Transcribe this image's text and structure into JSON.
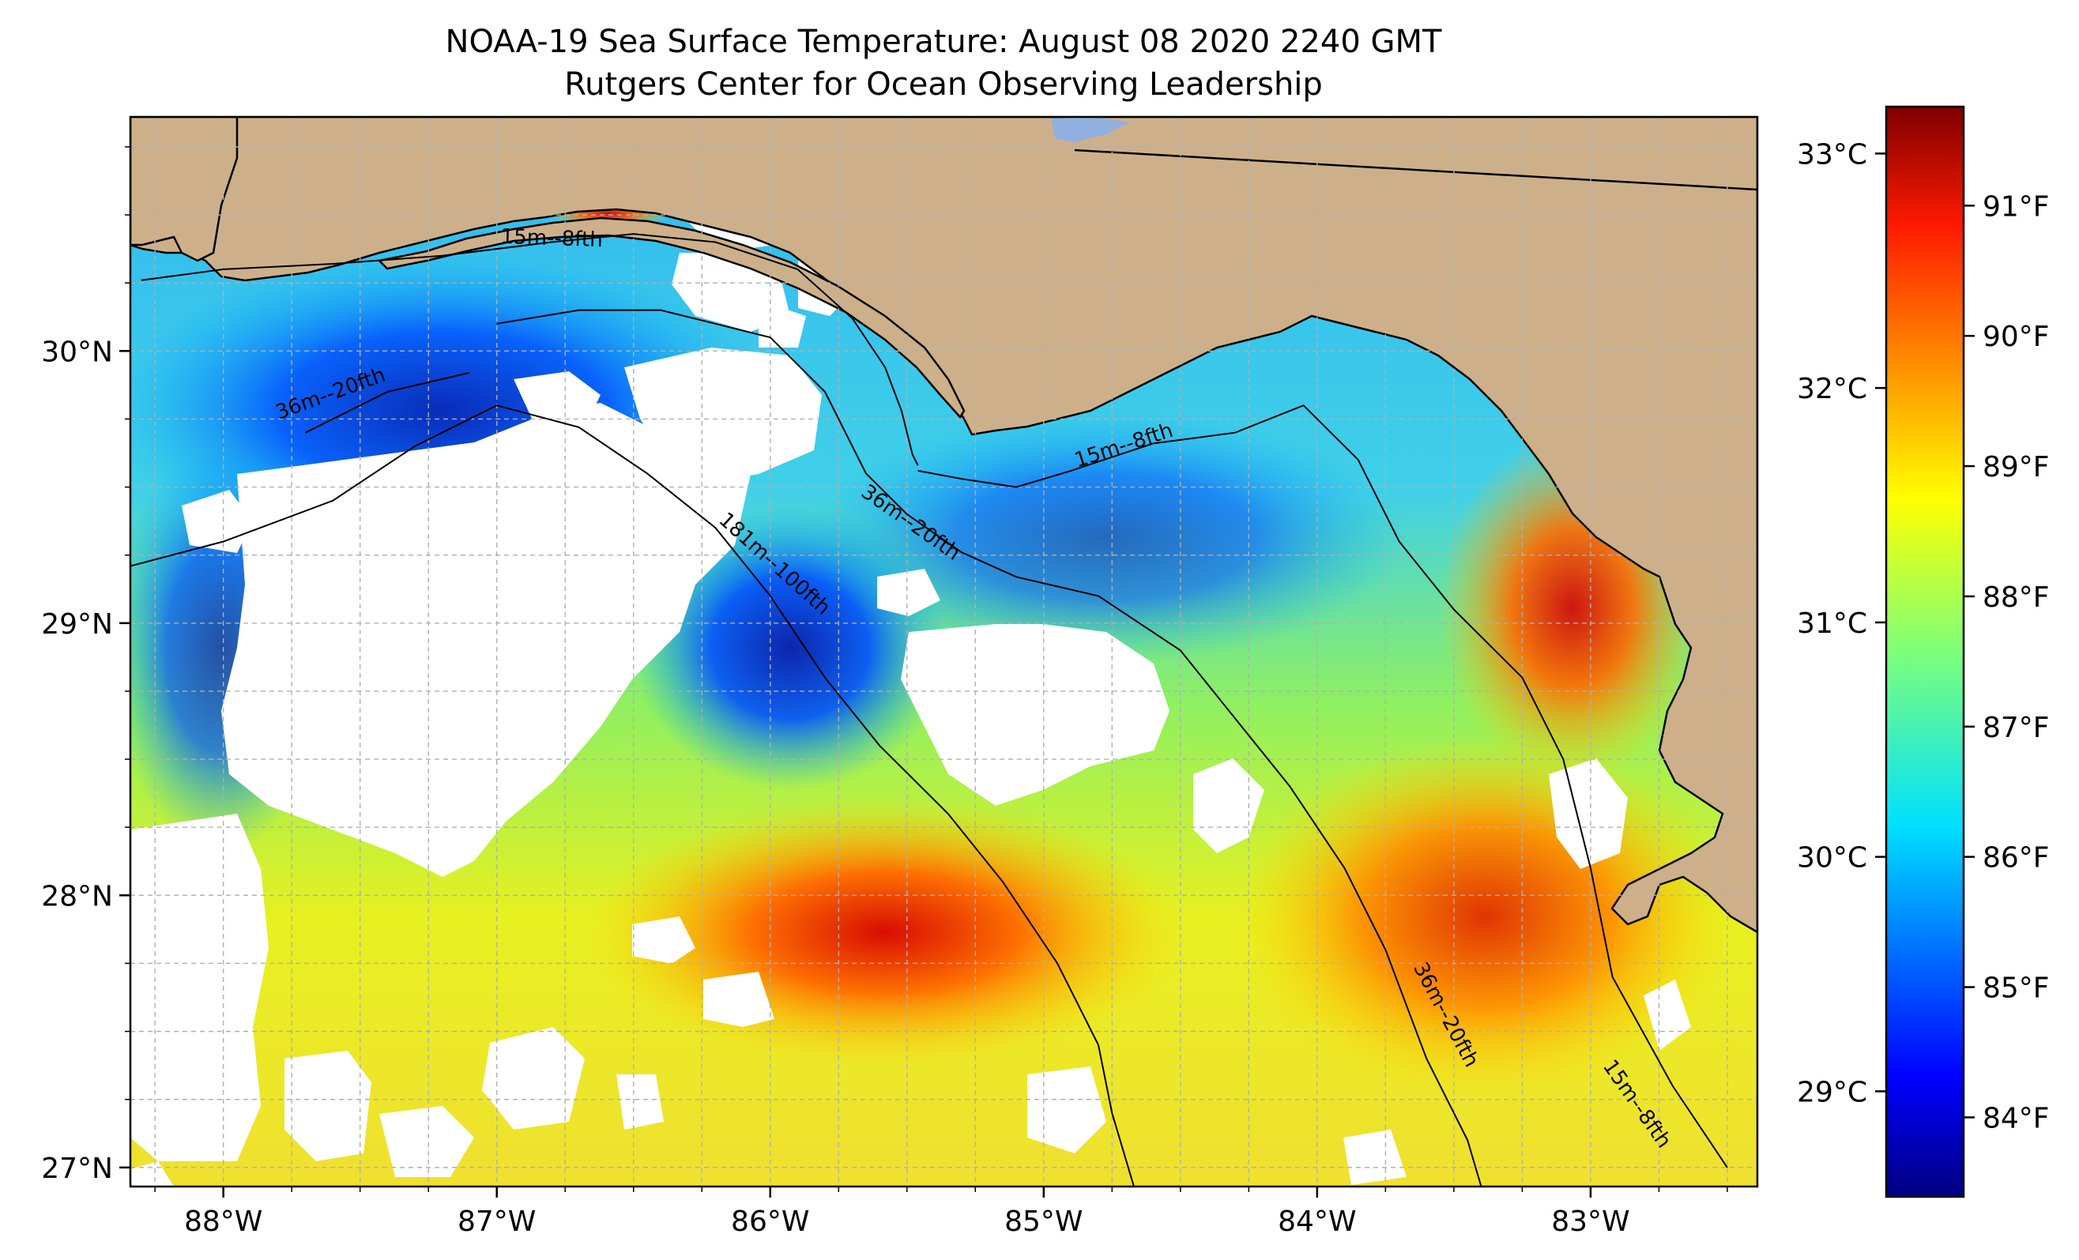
{
  "title": {
    "line1": "NOAA-19 Sea Surface Temperature: August 08 2020 2240 GMT",
    "line2": "Rutgers Center for Ocean Observing Leadership"
  },
  "colors": {
    "land": "#cdb08a",
    "cloud_mask": "#ffffff",
    "coast": "#000000",
    "grid": "#b0b0b0",
    "lake": "#8fb0e0"
  },
  "map": {
    "lon_range": [
      -88.34,
      -82.39
    ],
    "lat_range": [
      26.93,
      30.86
    ],
    "lon_ticks": [
      {
        "value": -88,
        "label": "88°W"
      },
      {
        "value": -87,
        "label": "87°W"
      },
      {
        "value": -86,
        "label": "86°W"
      },
      {
        "value": -85,
        "label": "85°W"
      },
      {
        "value": -84,
        "label": "84°W"
      },
      {
        "value": -83,
        "label": "83°W"
      }
    ],
    "lat_ticks": [
      {
        "value": 27,
        "label": "27°N"
      },
      {
        "value": 28,
        "label": "28°N"
      },
      {
        "value": 29,
        "label": "29°N"
      },
      {
        "value": 30,
        "label": "30°N"
      }
    ],
    "grid_step_deg": 0.25,
    "grid": true
  },
  "isobaths": [
    {
      "label": "15m--8fth",
      "segments": [
        [
          [
            -88.3,
            30.26
          ],
          [
            -88.0,
            30.3
          ],
          [
            -87.6,
            30.32
          ],
          [
            -87.2,
            30.35
          ],
          [
            -86.8,
            30.4
          ],
          [
            -86.5,
            30.43
          ],
          [
            -86.2,
            30.4
          ],
          [
            -85.9,
            30.3
          ],
          [
            -85.7,
            30.12
          ],
          [
            -85.58,
            29.94
          ],
          [
            -85.52,
            29.78
          ],
          [
            -85.48,
            29.62
          ],
          [
            -85.46,
            29.58
          ]
        ],
        [
          [
            -85.46,
            29.56
          ],
          [
            -85.3,
            29.53
          ],
          [
            -85.1,
            29.5
          ],
          [
            -84.9,
            29.56
          ],
          [
            -84.6,
            29.66
          ],
          [
            -84.3,
            29.7
          ],
          [
            -84.05,
            29.8
          ],
          [
            -83.85,
            29.6
          ],
          [
            -83.7,
            29.3
          ],
          [
            -83.5,
            29.05
          ],
          [
            -83.25,
            28.8
          ],
          [
            -83.1,
            28.5
          ],
          [
            -83.0,
            28.1
          ],
          [
            -82.92,
            27.7
          ],
          [
            -82.7,
            27.3
          ],
          [
            -82.5,
            27.0
          ]
        ]
      ],
      "labels": [
        {
          "text_lon": -86.8,
          "text_lat": 30.39,
          "angle": 2
        },
        {
          "text_lon": -84.7,
          "text_lat": 29.63,
          "angle": -18
        },
        {
          "text_lon": -82.85,
          "text_lat": 27.22,
          "angle": 55
        }
      ]
    },
    {
      "label": "36m--20fth",
      "segments": [
        [
          [
            -87.0,
            30.1
          ],
          [
            -86.7,
            30.15
          ],
          [
            -86.4,
            30.15
          ],
          [
            -86.0,
            30.05
          ],
          [
            -85.8,
            29.85
          ],
          [
            -85.65,
            29.55
          ],
          [
            -85.5,
            29.4
          ],
          [
            -85.3,
            29.26
          ],
          [
            -85.1,
            29.17
          ],
          [
            -84.8,
            29.1
          ],
          [
            -84.5,
            28.9
          ],
          [
            -84.3,
            28.65
          ],
          [
            -84.1,
            28.4
          ],
          [
            -83.9,
            28.1
          ],
          [
            -83.75,
            27.8
          ],
          [
            -83.6,
            27.4
          ],
          [
            -83.45,
            27.1
          ],
          [
            -83.4,
            26.93
          ]
        ],
        [
          [
            -87.7,
            29.7
          ],
          [
            -87.4,
            29.85
          ],
          [
            -87.1,
            29.92
          ]
        ]
      ],
      "labels": [
        {
          "text_lon": -87.6,
          "text_lat": 29.82,
          "angle": -20
        },
        {
          "text_lon": -85.5,
          "text_lat": 29.35,
          "angle": 35
        },
        {
          "text_lon": -83.55,
          "text_lat": 27.55,
          "angle": 62
        }
      ]
    },
    {
      "label": "181m--100fth",
      "segments": [
        [
          [
            -88.34,
            29.21
          ],
          [
            -88.0,
            29.3
          ],
          [
            -87.6,
            29.45
          ],
          [
            -87.3,
            29.65
          ],
          [
            -87.0,
            29.8
          ],
          [
            -86.7,
            29.72
          ],
          [
            -86.45,
            29.55
          ],
          [
            -86.2,
            29.35
          ],
          [
            -86.0,
            29.1
          ],
          [
            -85.8,
            28.8
          ],
          [
            -85.6,
            28.55
          ],
          [
            -85.35,
            28.3
          ],
          [
            -85.15,
            28.05
          ],
          [
            -84.95,
            27.75
          ],
          [
            -84.8,
            27.45
          ],
          [
            -84.75,
            27.2
          ],
          [
            -84.67,
            26.93
          ]
        ]
      ],
      "labels": [
        {
          "text_lon": -86.0,
          "text_lat": 29.2,
          "angle": 42
        }
      ]
    }
  ],
  "colorbar": {
    "celsius_ticks": [
      {
        "value": 29,
        "label": "29°C"
      },
      {
        "value": 30,
        "label": "30°C"
      },
      {
        "value": 31,
        "label": "31°C"
      },
      {
        "value": 32,
        "label": "32°C"
      },
      {
        "value": 33,
        "label": "33°C"
      }
    ],
    "fahrenheit_ticks": [
      {
        "value": 84,
        "label": "84°F"
      },
      {
        "value": 85,
        "label": "85°F"
      },
      {
        "value": 86,
        "label": "86°F"
      },
      {
        "value": 87,
        "label": "87°F"
      },
      {
        "value": 88,
        "label": "88°F"
      },
      {
        "value": 89,
        "label": "89°F"
      },
      {
        "value": 90,
        "label": "90°F"
      },
      {
        "value": 91,
        "label": "91°F"
      }
    ],
    "range_c": [
      28.55,
      33.2
    ],
    "colormap": "jet"
  }
}
